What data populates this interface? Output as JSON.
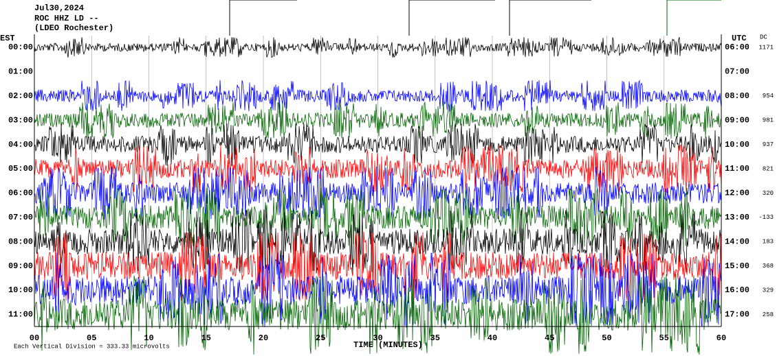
{
  "header": {
    "date": "Jul30,2024",
    "station": "ROC HHZ LD --",
    "location": "(LDEO Rochester)"
  },
  "left_axis": {
    "title": "EST"
  },
  "right_axis": {
    "title": "UTC"
  },
  "dc_title": "DC",
  "rows": [
    {
      "est": "00:00",
      "utc": "06:00",
      "dc": 1171,
      "color": "#000000"
    },
    {
      "est": "01:00",
      "utc": "07:00"
    },
    {
      "est": "02:00",
      "utc": "08:00",
      "dc": 954,
      "color": "#0000ff"
    },
    {
      "est": "03:00",
      "utc": "09:00",
      "dc": 981,
      "color": "#006400"
    },
    {
      "est": "04:00",
      "utc": "10:00",
      "dc": 937,
      "color": "#000000"
    },
    {
      "est": "05:00",
      "utc": "11:00",
      "dc": 821,
      "color": "#ff0000"
    },
    {
      "est": "06:00",
      "utc": "12:00",
      "dc": 320,
      "color": "#0000ff"
    },
    {
      "est": "07:00",
      "utc": "13:00",
      "dc": -133,
      "color": "#006400"
    },
    {
      "est": "08:00",
      "utc": "14:00",
      "dc": 183,
      "color": "#000000"
    },
    {
      "est": "09:00",
      "utc": "15:00",
      "dc": 368,
      "color": "#ff0000"
    },
    {
      "est": "10:00",
      "utc": "16:00",
      "dc": 329,
      "color": "#0000ff"
    },
    {
      "est": "11:00",
      "utc": "17:00",
      "dc": 258,
      "color": "#006400"
    }
  ],
  "x_axis": {
    "title": "TIME (MINUTES)",
    "ticks": [
      "00",
      "05",
      "10",
      "15",
      "20",
      "25",
      "30",
      "35",
      "40",
      "45",
      "50",
      "55",
      "60"
    ]
  },
  "footer": "Each Vertical Division =  333.33 microvolts"
}
